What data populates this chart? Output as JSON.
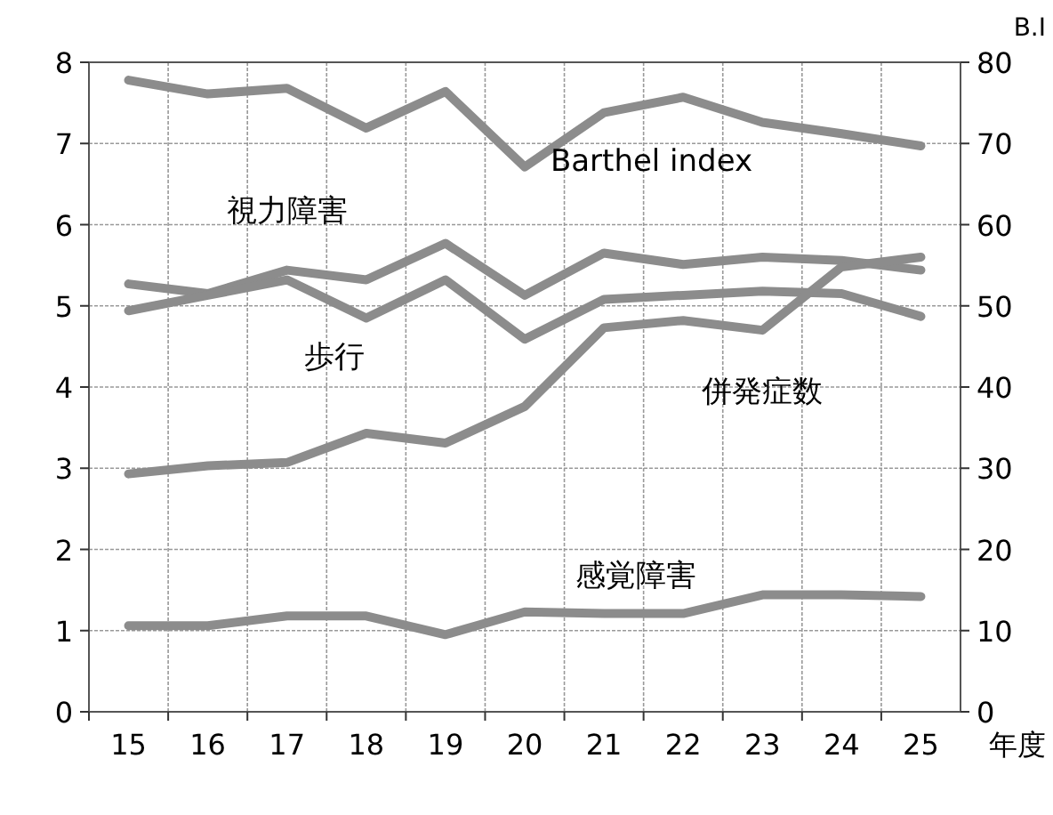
{
  "chart_data": {
    "type": "line",
    "categories": [
      "15",
      "16",
      "17",
      "18",
      "19",
      "20",
      "21",
      "22",
      "23",
      "24",
      "25"
    ],
    "xlabel": "年度",
    "y2label": "B.I",
    "ylim": [
      0,
      8
    ],
    "yticks": [
      0,
      1,
      2,
      3,
      4,
      5,
      6,
      7,
      8
    ],
    "y2lim": [
      0,
      80
    ],
    "y2ticks": [
      0,
      10,
      20,
      30,
      40,
      50,
      60,
      70,
      80
    ],
    "grid": true,
    "marker": "none",
    "line_style": "solid",
    "series": [
      {
        "name": "視力障害",
        "color": "#8c8c8c",
        "values": [
          5.27,
          5.15,
          5.44,
          5.32,
          5.77,
          5.13,
          5.65,
          5.51,
          5.6,
          5.56,
          5.44
        ]
      },
      {
        "name": "歩行",
        "color": "#8c8c8c",
        "values": [
          4.94,
          5.13,
          5.32,
          4.85,
          5.32,
          4.59,
          5.08,
          5.13,
          5.18,
          5.15,
          4.87
        ]
      },
      {
        "name": "併発症数",
        "color": "#8c8c8c",
        "values": [
          2.93,
          3.03,
          3.07,
          3.43,
          3.31,
          3.76,
          4.73,
          4.82,
          4.7,
          5.48,
          5.6
        ]
      },
      {
        "name": "感覚障害",
        "color": "#8c8c8c",
        "values": [
          1.06,
          1.06,
          1.18,
          1.18,
          0.95,
          1.23,
          1.21,
          1.21,
          1.44,
          1.44,
          1.42
        ]
      },
      {
        "name": "Barthel index",
        "color": "#8c8c8c",
        "axis": "y2",
        "values": [
          77.8,
          76.1,
          76.8,
          71.9,
          76.4,
          67.1,
          73.8,
          75.7,
          72.6,
          71.2,
          69.7
        ]
      }
    ]
  }
}
